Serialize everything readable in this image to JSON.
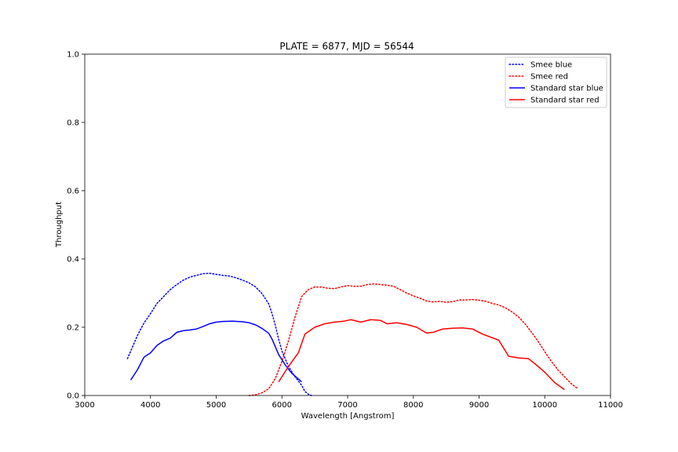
{
  "chart_data": {
    "type": "line",
    "title": "PLATE = 6877, MJD = 56544",
    "xlabel": "Wavelength [Angstrom]",
    "ylabel": "Throughput",
    "xlim": [
      3000,
      11000
    ],
    "ylim": [
      0,
      1.0
    ],
    "xticks": [
      3000,
      4000,
      5000,
      6000,
      7000,
      8000,
      9000,
      10000,
      11000
    ],
    "xtick_labels": [
      "3000",
      "4000",
      "5000",
      "6000",
      "7000",
      "8000",
      "9000",
      "10000",
      "11000"
    ],
    "yticks": [
      0,
      0.2,
      0.4,
      0.6,
      0.8,
      1.0
    ],
    "ytick_labels": [
      "0.0",
      "0.2",
      "0.4",
      "0.6",
      "0.8",
      "1.0"
    ],
    "grid": false,
    "legend_position": "top-right",
    "series": [
      {
        "name": "Smee blue",
        "color": "#0000ff",
        "style": "dotted",
        "x": [
          3650,
          3700,
          3800,
          3900,
          4000,
          4100,
          4200,
          4300,
          4400,
          4500,
          4600,
          4700,
          4800,
          4900,
          5000,
          5100,
          5200,
          5300,
          5400,
          5500,
          5600,
          5700,
          5800,
          5850,
          5900,
          5950,
          6000,
          6100,
          6200,
          6300,
          6350,
          6400,
          6450
        ],
        "values": [
          0.108,
          0.13,
          0.175,
          0.212,
          0.24,
          0.27,
          0.29,
          0.31,
          0.325,
          0.338,
          0.347,
          0.352,
          0.357,
          0.358,
          0.355,
          0.352,
          0.35,
          0.345,
          0.338,
          0.33,
          0.318,
          0.298,
          0.268,
          0.24,
          0.205,
          0.165,
          0.13,
          0.085,
          0.055,
          0.03,
          0.012,
          0.004,
          0.0
        ]
      },
      {
        "name": "Smee red",
        "color": "#ff0000",
        "style": "dotted",
        "x": [
          5500,
          5600,
          5700,
          5800,
          5900,
          6000,
          6100,
          6200,
          6300,
          6400,
          6500,
          6600,
          6700,
          6800,
          6900,
          7000,
          7100,
          7200,
          7300,
          7400,
          7500,
          7600,
          7700,
          7800,
          7900,
          8000,
          8100,
          8200,
          8300,
          8400,
          8500,
          8600,
          8700,
          8800,
          8900,
          9000,
          9100,
          9200,
          9300,
          9400,
          9500,
          9600,
          9700,
          9800,
          9900,
          10000,
          10100,
          10200,
          10300,
          10400,
          10500
        ],
        "values": [
          0.0,
          0.002,
          0.008,
          0.02,
          0.05,
          0.1,
          0.16,
          0.23,
          0.29,
          0.31,
          0.318,
          0.318,
          0.314,
          0.313,
          0.318,
          0.322,
          0.32,
          0.32,
          0.325,
          0.327,
          0.325,
          0.323,
          0.32,
          0.31,
          0.3,
          0.292,
          0.285,
          0.277,
          0.274,
          0.276,
          0.273,
          0.275,
          0.28,
          0.28,
          0.281,
          0.279,
          0.276,
          0.27,
          0.265,
          0.257,
          0.245,
          0.23,
          0.21,
          0.185,
          0.158,
          0.128,
          0.1,
          0.075,
          0.055,
          0.035,
          0.02
        ]
      },
      {
        "name": "Standard star blue",
        "color": "#0000ff",
        "style": "solid",
        "x": [
          3700,
          3800,
          3900,
          4000,
          4100,
          4200,
          4300,
          4400,
          4500,
          4600,
          4700,
          4800,
          4900,
          5000,
          5100,
          5250,
          5400,
          5500,
          5600,
          5700,
          5800,
          5850,
          5950,
          6050,
          6150,
          6300
        ],
        "values": [
          0.045,
          0.075,
          0.112,
          0.125,
          0.147,
          0.16,
          0.168,
          0.185,
          0.19,
          0.192,
          0.195,
          0.202,
          0.21,
          0.215,
          0.217,
          0.218,
          0.216,
          0.213,
          0.207,
          0.196,
          0.182,
          0.165,
          0.12,
          0.09,
          0.065,
          0.04
        ]
      },
      {
        "name": "Standard star red",
        "color": "#ff0000",
        "style": "solid",
        "x": [
          5950,
          6100,
          6250,
          6350,
          6500,
          6650,
          6800,
          6950,
          7050,
          7200,
          7350,
          7500,
          7600,
          7750,
          7900,
          8050,
          8200,
          8300,
          8450,
          8600,
          8750,
          8900,
          9050,
          9300,
          9450,
          9600,
          9750,
          9850,
          10000,
          10150,
          10300
        ],
        "values": [
          0.04,
          0.085,
          0.125,
          0.18,
          0.2,
          0.21,
          0.215,
          0.218,
          0.222,
          0.215,
          0.222,
          0.22,
          0.21,
          0.213,
          0.208,
          0.2,
          0.183,
          0.185,
          0.195,
          0.197,
          0.198,
          0.195,
          0.18,
          0.162,
          0.115,
          0.11,
          0.108,
          0.093,
          0.068,
          0.038,
          0.017
        ]
      }
    ]
  }
}
